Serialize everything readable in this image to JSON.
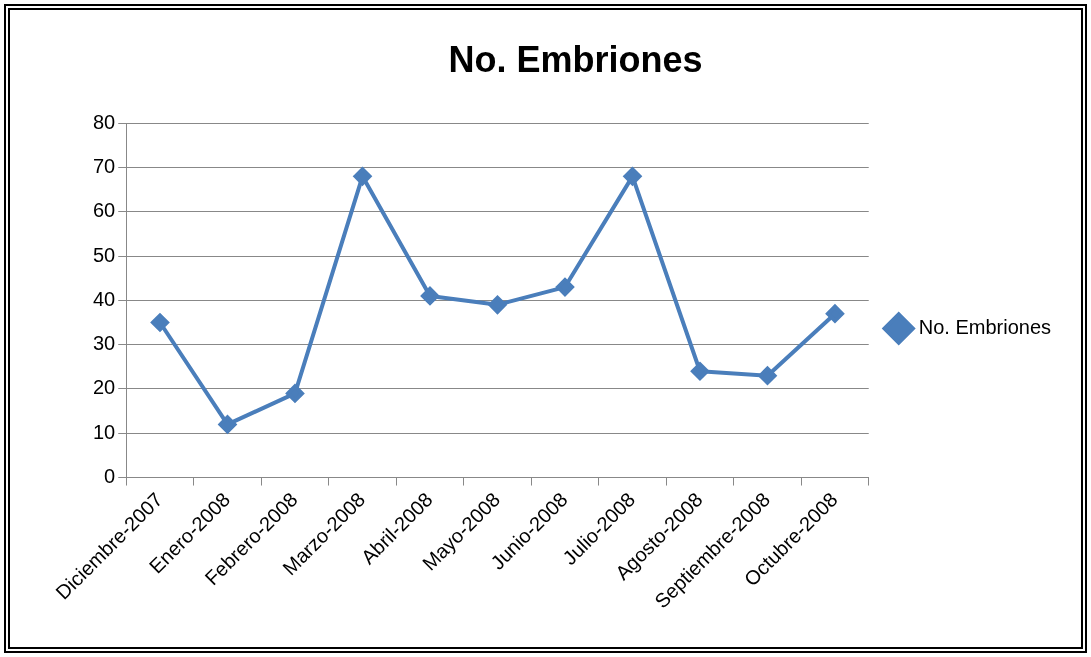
{
  "chart_data": {
    "type": "line",
    "title": "No. Embriones",
    "categories": [
      "Diciembre-2007",
      "Enero-2008",
      "Febrero-2008",
      "Marzo-2008",
      "Abril-2008",
      "Mayo-2008",
      "Junio-2008",
      "Julio-2008",
      "Agosto-2008",
      "Septiembre-2008",
      "Octubre-2008"
    ],
    "series": [
      {
        "name": "No. Embriones",
        "color": "#4a7ebb",
        "values": [
          35,
          12,
          19,
          68,
          41,
          39,
          43,
          68,
          24,
          23,
          37
        ]
      }
    ],
    "ylim": [
      0,
      80
    ],
    "yticks": [
      0,
      10,
      20,
      30,
      40,
      50,
      60,
      70,
      80
    ],
    "grid": "y",
    "legend": "right",
    "marker": "diamond",
    "line_style": "solid"
  }
}
